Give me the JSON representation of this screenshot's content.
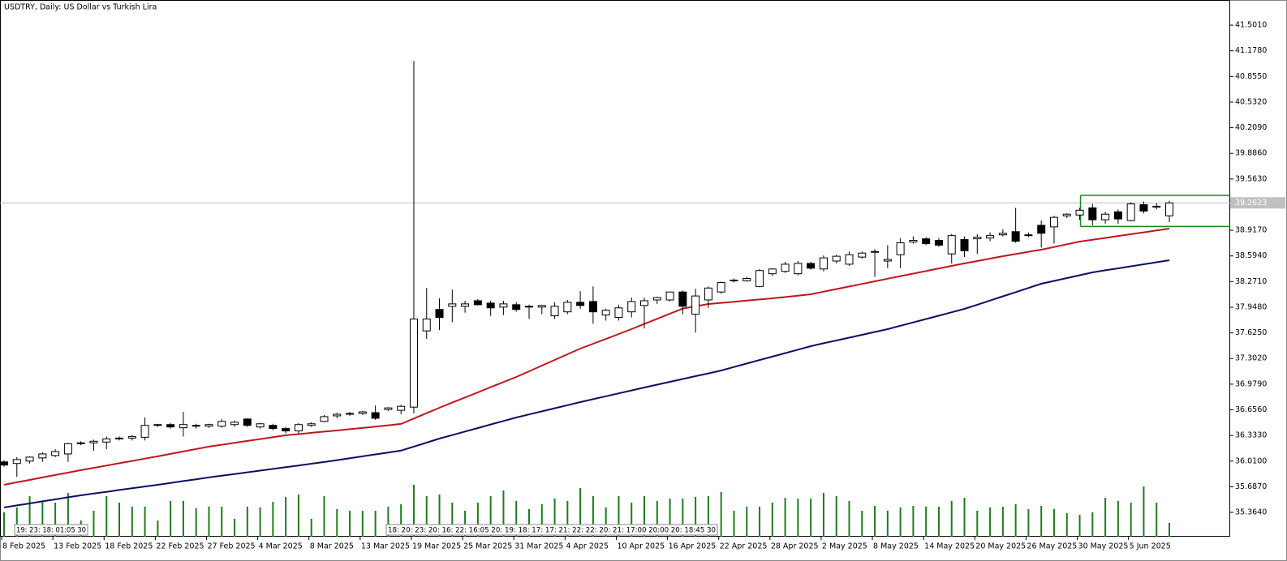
{
  "chart_data": {
    "type": "candlestick",
    "title": "USDTRY, Daily:  US Dollar vs Turkish Lira",
    "categories": [
      "8 Feb 2025",
      null,
      null,
      null,
      "13 Feb 2025",
      null,
      null,
      null,
      "18 Feb 2025",
      null,
      null,
      null,
      "22 Feb 2025",
      null,
      null,
      null,
      "27 Feb 2025",
      null,
      null,
      null,
      "4 Mar 2025",
      null,
      null,
      null,
      "8 Mar 2025",
      null,
      null,
      null,
      "13 Mar 2025",
      null,
      null,
      null,
      "19 Mar 2025",
      null,
      null,
      null,
      "25 Mar 2025",
      null,
      null,
      null,
      "31 Mar 2025",
      null,
      null,
      null,
      "4 Apr 2025",
      null,
      null,
      null,
      "10 Apr 2025",
      null,
      null,
      null,
      "16 Apr 2025",
      null,
      null,
      null,
      "22 Apr 2025",
      null,
      null,
      null,
      "28 Apr 2025",
      null,
      null,
      null,
      "2 May 2025",
      null,
      null,
      null,
      "8 May 2025",
      null,
      null,
      null,
      "14 May 2025",
      null,
      null,
      null,
      "20 May 2025",
      null,
      null,
      null,
      "26 May 2025",
      null,
      null,
      null,
      "30 May 2025",
      null,
      null,
      null,
      "5 Jun 2025",
      null,
      null,
      null
    ],
    "open": [
      36.0,
      35.98,
      36.01,
      36.05,
      36.08,
      36.1,
      36.23,
      36.24,
      36.25,
      36.29,
      36.3,
      36.31,
      36.46,
      36.47,
      36.43,
      36.45,
      36.45,
      36.45,
      36.47,
      36.54,
      36.44,
      36.46,
      36.42,
      36.39,
      36.46,
      36.51,
      36.58,
      36.6,
      36.61,
      36.62,
      36.66,
      36.65,
      36.69,
      37.65,
      37.92,
      37.96,
      37.96,
      38.03,
      38.0,
      37.95,
      37.98,
      37.95,
      37.95,
      37.84,
      37.89,
      38.01,
      38.02,
      37.85,
      37.82,
      37.89,
      37.97,
      38.04,
      38.04,
      38.14,
      37.86,
      38.04,
      38.14,
      38.28,
      38.28,
      38.21,
      38.37,
      38.4,
      38.37,
      38.5,
      38.43,
      38.53,
      38.49,
      38.58,
      38.64,
      38.53,
      38.61,
      38.77,
      38.81,
      38.79,
      38.62,
      38.8,
      38.81,
      38.82,
      38.86,
      38.9,
      38.85,
      38.98,
      38.96,
      39.1,
      39.11,
      39.2,
      39.05,
      39.15,
      39.04,
      39.24,
      39.21,
      39.1
    ],
    "high": [
      36.02,
      36.06,
      36.07,
      36.12,
      36.16,
      36.24,
      36.26,
      36.28,
      36.32,
      36.32,
      36.34,
      36.56,
      36.48,
      36.49,
      36.63,
      36.48,
      36.48,
      36.54,
      36.52,
      36.55,
      36.49,
      36.48,
      36.44,
      36.49,
      36.5,
      36.59,
      36.62,
      36.63,
      36.64,
      36.71,
      36.69,
      36.72,
      41.05,
      38.19,
      38.06,
      38.17,
      38.03,
      38.05,
      38.03,
      38.03,
      38.01,
      37.98,
      37.98,
      38.01,
      38.04,
      38.15,
      38.21,
      37.93,
      37.98,
      38.07,
      38.07,
      38.08,
      38.14,
      38.16,
      38.18,
      38.21,
      38.27,
      38.31,
      38.33,
      38.43,
      38.44,
      38.52,
      38.53,
      38.52,
      38.6,
      38.61,
      38.65,
      38.65,
      38.68,
      38.73,
      38.82,
      38.84,
      38.83,
      38.82,
      38.87,
      38.84,
      38.87,
      38.89,
      38.93,
      39.2,
      38.89,
      39.04,
      39.1,
      39.13,
      39.2,
      39.25,
      39.15,
      39.18,
      39.27,
      39.28,
      39.26,
      39.29
    ],
    "low": [
      35.94,
      35.81,
      35.98,
      36.0,
      36.06,
      36.0,
      36.21,
      36.14,
      36.16,
      36.27,
      36.27,
      36.27,
      36.44,
      36.42,
      36.32,
      36.42,
      36.43,
      36.43,
      36.44,
      36.44,
      36.42,
      36.4,
      36.36,
      36.36,
      36.44,
      36.5,
      36.55,
      36.58,
      36.59,
      36.53,
      36.64,
      36.6,
      36.61,
      37.55,
      37.66,
      37.76,
      37.88,
      37.97,
      37.84,
      37.85,
      37.89,
      37.8,
      37.86,
      37.8,
      37.86,
      37.93,
      37.74,
      37.78,
      37.78,
      37.82,
      37.68,
      37.99,
      38.02,
      37.86,
      37.63,
      37.94,
      38.12,
      38.26,
      38.27,
      38.2,
      38.34,
      38.38,
      38.35,
      38.42,
      38.4,
      38.5,
      38.47,
      38.56,
      38.33,
      38.44,
      38.44,
      38.75,
      38.73,
      38.71,
      38.5,
      38.58,
      38.62,
      38.78,
      38.84,
      38.76,
      38.83,
      38.7,
      38.75,
      39.07,
      39.05,
      38.98,
      39.0,
      39.0,
      39.03,
      39.13,
      39.18,
      39.02
    ],
    "close": [
      35.96,
      36.03,
      36.06,
      36.1,
      36.13,
      36.23,
      36.24,
      36.26,
      36.29,
      36.3,
      36.32,
      36.46,
      36.47,
      36.44,
      36.47,
      36.46,
      36.47,
      36.51,
      36.5,
      36.46,
      36.48,
      36.42,
      36.39,
      36.47,
      36.48,
      36.57,
      36.6,
      36.61,
      36.63,
      36.55,
      36.68,
      36.7,
      37.8,
      37.8,
      37.82,
      37.99,
      37.99,
      37.98,
      37.94,
      37.99,
      37.92,
      37.96,
      37.97,
      37.96,
      38.01,
      37.97,
      37.89,
      37.91,
      37.94,
      38.02,
      38.03,
      38.07,
      38.14,
      37.96,
      38.09,
      38.19,
      38.26,
      38.29,
      38.31,
      38.41,
      38.43,
      38.49,
      38.5,
      38.44,
      38.57,
      38.59,
      38.61,
      38.63,
      38.65,
      38.55,
      38.76,
      38.79,
      38.75,
      38.73,
      38.85,
      38.66,
      38.83,
      38.85,
      38.88,
      38.78,
      38.86,
      38.88,
      39.08,
      39.12,
      39.17,
      39.05,
      39.12,
      39.06,
      39.25,
      39.16,
      39.22,
      39.2623
    ],
    "up_color": "#ffffff",
    "down_color": "#000000",
    "moving_averages": [
      {
        "color": "#c0161d",
        "values": [
          35.712,
          35.743,
          35.773,
          35.804,
          35.835,
          35.865,
          35.896,
          35.925,
          35.954,
          35.983,
          36.012,
          36.041,
          36.07,
          36.101,
          36.131,
          36.162,
          36.192,
          36.216,
          36.24,
          36.264,
          36.287,
          36.311,
          36.335,
          36.35,
          36.366,
          36.381,
          36.396,
          36.412,
          36.427,
          36.444,
          36.461,
          36.478,
          36.546,
          36.614,
          36.682,
          36.747,
          36.811,
          36.876,
          36.941,
          37.005,
          37.07,
          37.141,
          37.213,
          37.284,
          37.356,
          37.427,
          37.488,
          37.549,
          37.611,
          37.672,
          37.737,
          37.802,
          37.867,
          37.932,
          37.96,
          37.989,
          38.003,
          38.017,
          38.032,
          38.046,
          38.06,
          38.077,
          38.094,
          38.111,
          38.144,
          38.177,
          38.209,
          38.242,
          38.275,
          38.307,
          38.34,
          38.372,
          38.404,
          38.437,
          38.469,
          38.5,
          38.53,
          38.561,
          38.591,
          38.618,
          38.646,
          38.673,
          38.707,
          38.741,
          38.775,
          38.798,
          38.821,
          38.845,
          38.868,
          38.891,
          38.915,
          38.938
        ]
      },
      {
        "color": "#0b1060",
        "values": [
          35.426,
          35.452,
          35.477,
          35.503,
          35.528,
          35.554,
          35.579,
          35.601,
          35.623,
          35.646,
          35.668,
          35.69,
          35.712,
          35.735,
          35.758,
          35.781,
          35.804,
          35.826,
          35.847,
          35.869,
          35.89,
          35.912,
          35.933,
          35.955,
          35.977,
          35.998,
          36.022,
          36.046,
          36.07,
          36.094,
          36.118,
          36.142,
          36.193,
          36.243,
          36.294,
          36.338,
          36.382,
          36.426,
          36.471,
          36.515,
          36.559,
          36.598,
          36.637,
          36.675,
          36.714,
          36.753,
          36.79,
          36.827,
          36.863,
          36.9,
          36.937,
          36.973,
          37.008,
          37.044,
          37.08,
          37.115,
          37.151,
          37.195,
          37.239,
          37.283,
          37.326,
          37.37,
          37.414,
          37.458,
          37.494,
          37.529,
          37.565,
          37.601,
          37.636,
          37.672,
          37.715,
          37.757,
          37.8,
          37.842,
          37.885,
          37.927,
          37.98,
          38.033,
          38.086,
          38.138,
          38.191,
          38.244,
          38.28,
          38.315,
          38.351,
          38.387,
          38.413,
          38.438,
          38.464,
          38.489,
          38.515,
          38.54
        ]
      }
    ],
    "volume": {
      "color": "#1f7a1f",
      "values": [
        30,
        36,
        50,
        43,
        42,
        54,
        20,
        32,
        50,
        42,
        37,
        37,
        20,
        44,
        44,
        35,
        37,
        37,
        22,
        37,
        36,
        43,
        49,
        52,
        22,
        50,
        34,
        32,
        32,
        32,
        37,
        40,
        64,
        50,
        52,
        42,
        32,
        42,
        50,
        57,
        44,
        34,
        40,
        47,
        44,
        60,
        50,
        36,
        50,
        42,
        50,
        44,
        47,
        47,
        49,
        50,
        55,
        32,
        37,
        37,
        42,
        48,
        47,
        47,
        54,
        50,
        44,
        32,
        38,
        32,
        36,
        38,
        37,
        37,
        44,
        48,
        32,
        36,
        37,
        40,
        34,
        38,
        34,
        29,
        27,
        30,
        48,
        44,
        42,
        62,
        42,
        17
      ]
    },
    "levels": {
      "color": "#138a13",
      "values": [
        39.357,
        38.965
      ]
    },
    "last_price": 39.2623,
    "ylim": [
      35.058,
      41.818
    ],
    "yticks": [
      {
        "value": 41.501,
        "label": "41.5010"
      },
      {
        "value": 41.178,
        "label": "41.1780"
      },
      {
        "value": 40.855,
        "label": "40.8550"
      },
      {
        "value": 40.532,
        "label": "40.5320"
      },
      40.209,
      {
        "value": 40.209,
        "label": "40.2090"
      },
      {
        "value": 39.886,
        "label": "39.8860"
      },
      {
        "value": 39.563,
        "label": "39.5630"
      },
      {
        "value": 38.917,
        "label": "38.9170"
      },
      {
        "value": 38.594,
        "label": "38.5940"
      },
      {
        "value": 38.271,
        "label": "38.2710"
      },
      {
        "value": 37.948,
        "label": "37.9480"
      },
      {
        "value": 37.625,
        "label": "37.6250"
      },
      {
        "value": 37.302,
        "label": "37.3020"
      },
      {
        "value": 36.979,
        "label": "36.9790"
      },
      {
        "value": 36.656,
        "label": "36.6560"
      },
      {
        "value": 36.333,
        "label": "36.3330"
      },
      {
        "value": 36.01,
        "label": "36.0100"
      },
      {
        "value": 35.687,
        "label": "35.6870"
      },
      {
        "value": 35.364,
        "label": "35.3640"
      }
    ],
    "time_markers": [
      "19: 23: 18: 01:05 30",
      "18: 20: 23: 20: 16: 22: 16:05 20: 19: 18: 17: 17: 21: 22: 22: 20: 21: 17:00 20:00 20: 18:45 30"
    ]
  }
}
